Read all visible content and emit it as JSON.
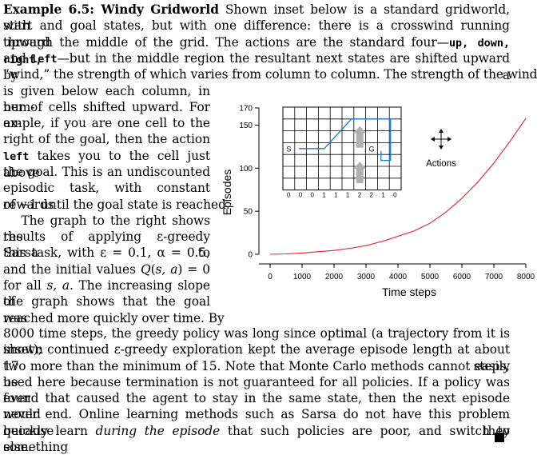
{
  "example": {
    "heading": "Example 6.5: Windy Gridworld",
    "top_lines": [
      [
        {
          "t": "Example 6.5: Windy Gridworld",
          "c": "b"
        },
        {
          "t": " Shown inset below is a standard gridworld, with"
        }
      ],
      [
        {
          "t": "start and goal states, but with one difference: there is a crosswind running upward"
        }
      ],
      [
        {
          "t": "through the middle of the grid. The actions are the standard four—"
        },
        {
          "t": "up, down, right,",
          "c": "mono"
        }
      ],
      [
        {
          "t": "and "
        },
        {
          "t": "left",
          "c": "mono"
        },
        {
          "t": "—but in the middle region the resultant next states are shifted upward by a"
        }
      ],
      [
        {
          "t": "“wind,” the strength of which varies from column to column. The strength of the wind"
        }
      ]
    ],
    "left_lines": [
      [
        {
          "t": "is given below each column, in num-"
        }
      ],
      [
        {
          "t": "ber of cells shifted upward. For ex-"
        }
      ],
      [
        {
          "t": "ample, if you are one cell to the"
        }
      ],
      [
        {
          "t": "right of the goal, then the action"
        }
      ],
      [
        {
          "t": "left",
          "c": "mono"
        },
        {
          "t": " takes you to the cell just above"
        }
      ],
      [
        {
          "t": "the goal. This is an undiscounted"
        }
      ],
      [
        {
          "t": "episodic task, with constant rewards"
        }
      ],
      [
        {
          "t": "of −1 until the goal state is reached."
        }
      ],
      [
        {
          "t": "    The graph to the right shows the"
        }
      ],
      [
        {
          "t": "results of applying ε-greedy Sarsa to"
        }
      ],
      [
        {
          "t": "this task, with ε = 0.1, α = 0.5,"
        }
      ],
      [
        {
          "t": "and the initial values "
        },
        {
          "t": "Q",
          "c": "i"
        },
        {
          "t": "("
        },
        {
          "t": "s, a",
          "c": "i"
        },
        {
          "t": ") = 0"
        }
      ],
      [
        {
          "t": "for all "
        },
        {
          "t": "s, a",
          "c": "i"
        },
        {
          "t": ". The increasing slope of"
        }
      ],
      [
        {
          "t": "the graph shows that the goal was"
        }
      ],
      [
        {
          "t": "reached more quickly over time. By"
        }
      ]
    ],
    "bottom_lines": [
      [
        {
          "t": "8000 time steps, the greedy policy was long since optimal (a trajectory from it is shown"
        }
      ],
      [
        {
          "t": "inset); continued ε-greedy exploration kept the average episode length at about 17 steps,"
        }
      ],
      [
        {
          "t": "two more than the minimum of 15. Note that Monte Carlo methods cannot easily be"
        }
      ],
      [
        {
          "t": "used here because termination is not guaranteed for all policies. If a policy was ever"
        }
      ],
      [
        {
          "t": "found that caused the agent to stay in the same state, then the next episode would"
        }
      ],
      [
        {
          "t": "never end. Online learning methods such as Sarsa do not have this problem because they"
        }
      ],
      [
        {
          "t": "quickly learn "
        },
        {
          "t": "during the episode",
          "c": "i"
        },
        {
          "t": " that such policies are poor, and switch to something"
        }
      ],
      [
        {
          "t": "else."
        }
      ]
    ]
  },
  "figure": {
    "inset": {
      "wind_strengths": [
        "0",
        "0",
        "0",
        "1",
        "1",
        "1",
        "2",
        "2",
        "1",
        "0"
      ],
      "start_label": "S",
      "goal_label": "G",
      "actions_label": "Actions"
    },
    "chart_data": {
      "type": "line",
      "xlabel": "Time steps",
      "ylabel": "Episodes",
      "xlim": [
        0,
        8000
      ],
      "ylim": [
        0,
        170
      ],
      "xticks": [
        "0",
        "1000",
        "2000",
        "3000",
        "4000",
        "5000",
        "6000",
        "7000",
        "8000"
      ],
      "yticks": [
        "0",
        "50",
        "100",
        "150",
        "170"
      ],
      "series": [
        {
          "x": [
            0,
            500,
            1000,
            1500,
            2000,
            2500,
            3000,
            3300,
            3600,
            4000,
            4500,
            5000,
            5500,
            6000,
            6500,
            7000,
            7500,
            8000
          ],
          "y": [
            0,
            0.5,
            1.5,
            3,
            4.5,
            7,
            10,
            13,
            16,
            21,
            27,
            36,
            49,
            65,
            84,
            106,
            131,
            158
          ]
        }
      ],
      "line_color": "#e8202a"
    }
  }
}
